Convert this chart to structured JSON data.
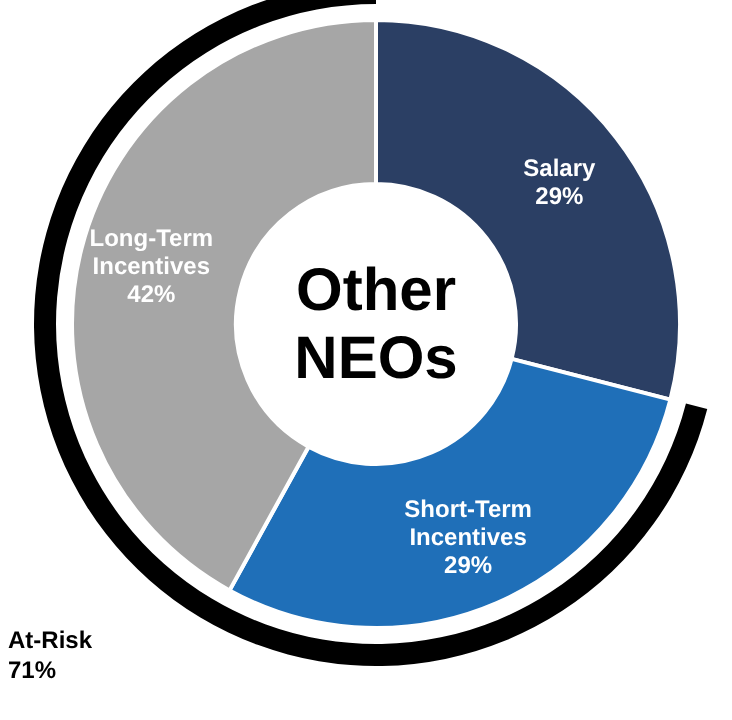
{
  "chart_data": {
    "type": "donut",
    "title": "Other NEOs",
    "categories": [
      "Salary",
      "Short-Term Incentives",
      "Long-Term Incentives"
    ],
    "values": [
      29,
      29,
      42
    ],
    "value_labels": [
      "29%",
      "29%",
      "42%"
    ],
    "colors": [
      "#2b3f64",
      "#1f6fb8",
      "#a6a6a6"
    ],
    "annotations": [
      "At-Risk\n71%"
    ]
  }
}
